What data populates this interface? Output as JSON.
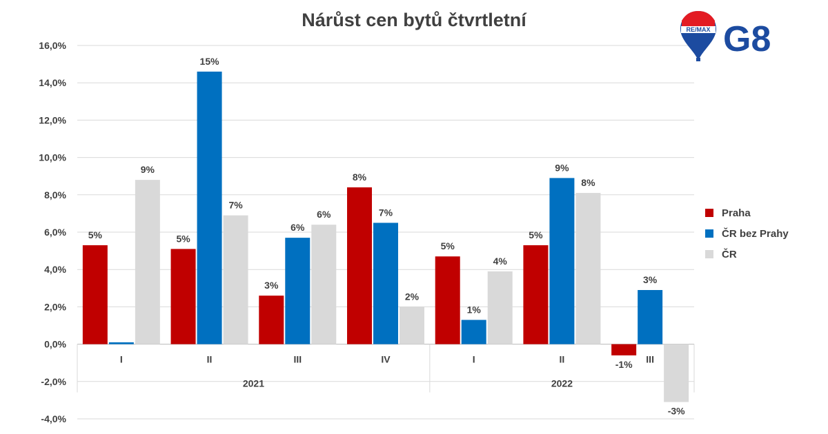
{
  "chart_data": {
    "type": "bar",
    "title": "Nárůst cen bytů čtvrtletní",
    "xlabel": "",
    "ylabel": "",
    "ylim": [
      -0.04,
      0.16
    ],
    "y_ticks": [
      "16,0%",
      "14,0%",
      "12,0%",
      "10,0%",
      "8,0%",
      "6,0%",
      "4,0%",
      "2,0%",
      "0,0%",
      "-2,0%",
      "-4,0%"
    ],
    "categories": [
      "I",
      "II",
      "III",
      "IV",
      "I",
      "II",
      "III"
    ],
    "groups": [
      {
        "label": "2021",
        "count": 4
      },
      {
        "label": "2022",
        "count": 3
      }
    ],
    "grid": true,
    "legend_position": "right",
    "series": [
      {
        "name": "Praha",
        "color": "#c00000",
        "values": [
          0.053,
          0.051,
          0.026,
          0.084,
          0.047,
          0.053,
          -0.006
        ],
        "labels": [
          "5%",
          "5%",
          "3%",
          "8%",
          "5%",
          "5%",
          "-1%"
        ]
      },
      {
        "name": "ČR bez Prahy",
        "color": "#0070c0",
        "values": [
          0.001,
          0.146,
          0.057,
          0.065,
          0.013,
          0.089,
          0.029
        ],
        "labels": [
          "",
          "15%",
          "6%",
          "7%",
          "1%",
          "9%",
          "3%"
        ]
      },
      {
        "name": "ČR",
        "color": "#d9d9d9",
        "values": [
          0.088,
          0.069,
          0.064,
          0.02,
          0.039,
          0.081,
          -0.031
        ],
        "labels": [
          "9%",
          "7%",
          "6%",
          "2%",
          "4%",
          "8%",
          "-3%"
        ]
      }
    ]
  },
  "logo": {
    "balloon_text": "RE/MAX",
    "brand_text": "G8",
    "colors": {
      "red": "#e31b23",
      "blue": "#1c4ba0"
    }
  }
}
